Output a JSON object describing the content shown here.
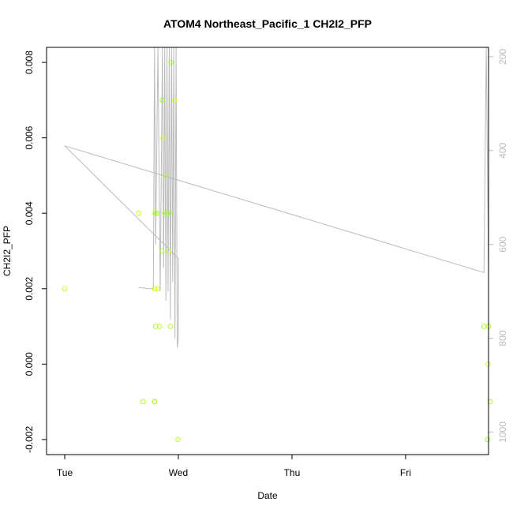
{
  "chart_data": {
    "type": "scatter",
    "title": "ATOM4 Northeast_Pacific_1 CH2I2_PFP",
    "xlabel": "Date",
    "ylabel": "CH2I2_PFP",
    "x_ticks": [
      {
        "value": 0,
        "label": "Tue"
      },
      {
        "value": 1,
        "label": "Wed"
      },
      {
        "value": 2,
        "label": "Thu"
      },
      {
        "value": 3,
        "label": "Fri"
      }
    ],
    "xlim": [
      -0.16,
      3.73
    ],
    "y_ticks": [
      -0.002,
      0.0,
      0.002,
      0.004,
      0.006,
      0.008
    ],
    "y_tick_labels": [
      "-0.002",
      "0.000",
      "0.002",
      "0.004",
      "0.006",
      "0.008"
    ],
    "ylim": [
      -0.0024,
      0.0084
    ],
    "y2_ticks": [
      200,
      400,
      600,
      800,
      1000
    ],
    "y2_tick_labels": [
      "200",
      "400",
      "600",
      "800",
      "1000"
    ],
    "y2lim": [
      1048,
      180
    ],
    "grid": false,
    "points": [
      {
        "x": 0.0,
        "y": 0.002
      },
      {
        "x": 0.65,
        "y": 0.004
      },
      {
        "x": 0.69,
        "y": -0.001
      },
      {
        "x": 0.79,
        "y": -0.001
      },
      {
        "x": 0.79,
        "y": 0.002
      },
      {
        "x": 0.795,
        "y": 0.004
      },
      {
        "x": 0.8,
        "y": 0.001
      },
      {
        "x": 0.81,
        "y": 0.004
      },
      {
        "x": 0.815,
        "y": 0.002
      },
      {
        "x": 0.835,
        "y": 0.001
      },
      {
        "x": 0.855,
        "y": 0.003
      },
      {
        "x": 0.86,
        "y": 0.007
      },
      {
        "x": 0.865,
        "y": 0.006
      },
      {
        "x": 0.88,
        "y": 0.004
      },
      {
        "x": 0.885,
        "y": 0.005
      },
      {
        "x": 0.9,
        "y": 0.004
      },
      {
        "x": 0.915,
        "y": 0.003
      },
      {
        "x": 0.925,
        "y": 0.004
      },
      {
        "x": 0.93,
        "y": 0.001
      },
      {
        "x": 0.935,
        "y": 0.008
      },
      {
        "x": 0.965,
        "y": 0.007
      },
      {
        "x": 0.995,
        "y": -0.002
      },
      {
        "x": 3.69,
        "y": 0.001
      },
      {
        "x": 3.72,
        "y": -0.002
      },
      {
        "x": 3.725,
        "y": 0.0
      },
      {
        "x": 3.73,
        "y": 0.001
      },
      {
        "x": 3.745,
        "y": -0.001
      }
    ],
    "point_colors": [
      "#ccff33",
      "#bbff22",
      "#aaff22",
      "#99ff22"
    ],
    "pressure_line": {
      "color": "#bbbbbb",
      "x": [
        0.65,
        0.78,
        0.79,
        0.8,
        0.82,
        0.84,
        0.86,
        0.87,
        0.88,
        0.89,
        0.9,
        0.91,
        0.92,
        0.93,
        0.94,
        0.95,
        0.96,
        0.97,
        0.98,
        0.99,
        1.0,
        1.0,
        0.0,
        3.69,
        3.71,
        3.73
      ],
      "y": [
        692,
        695,
        180,
        600,
        180,
        700,
        180,
        650,
        180,
        720,
        180,
        700,
        180,
        760,
        180,
        680,
        180,
        800,
        180,
        820,
        800,
        630,
        390,
        660,
        180,
        660
      ]
    }
  }
}
